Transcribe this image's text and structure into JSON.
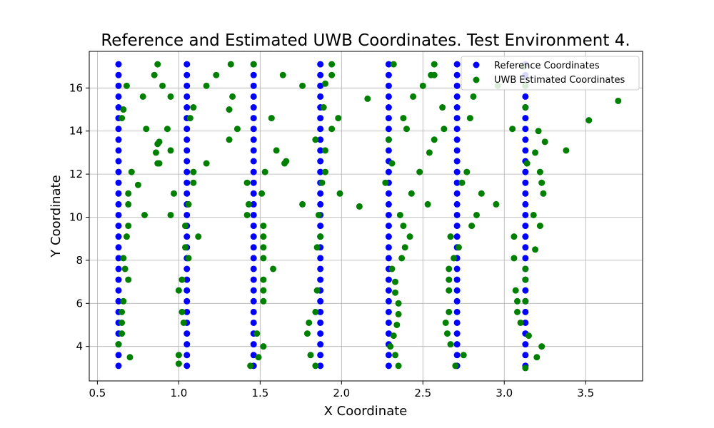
{
  "chart_data": {
    "type": "scatter",
    "title": "Reference and Estimated UWB Coordinates. Test Environment 4.",
    "xlabel": "X Coordinate",
    "ylabel": "Y Coordinate",
    "xlim": [
      0.45,
      3.85
    ],
    "ylim": [
      2.4,
      17.7
    ],
    "xticks": [
      0.5,
      1.0,
      1.5,
      2.0,
      2.5,
      3.0,
      3.5
    ],
    "xtick_labels": [
      "0.5",
      "1.0",
      "1.5",
      "2.0",
      "2.5",
      "3.0",
      "3.5"
    ],
    "yticks": [
      4,
      6,
      8,
      10,
      12,
      14,
      16
    ],
    "ytick_labels": [
      "4",
      "6",
      "8",
      "10",
      "12",
      "14",
      "16"
    ],
    "grid": true,
    "legend_position": "top-right",
    "series": [
      {
        "name": "Reference Coordinates",
        "color": "#0000ff",
        "columns_x": [
          0.63,
          1.05,
          1.46,
          1.87,
          2.29,
          2.71,
          3.13
        ],
        "y_start": 3.1,
        "y_end": 17.1,
        "y_step": 0.5
      },
      {
        "name": "UWB Estimated Coordinates",
        "color": "#008000",
        "points": [
          [
            0.68,
            16.1
          ],
          [
            0.78,
            15.6
          ],
          [
            0.66,
            15.0
          ],
          [
            0.65,
            14.6
          ],
          [
            0.8,
            14.1
          ],
          [
            0.88,
            13.5
          ],
          [
            0.86,
            13.0
          ],
          [
            0.88,
            12.5
          ],
          [
            0.71,
            12.1
          ],
          [
            0.75,
            11.5
          ],
          [
            0.69,
            11.1
          ],
          [
            0.69,
            10.6
          ],
          [
            0.79,
            10.1
          ],
          [
            0.69,
            9.6
          ],
          [
            0.68,
            9.1
          ],
          [
            0.66,
            8.1
          ],
          [
            0.67,
            7.6
          ],
          [
            0.69,
            7.1
          ],
          [
            0.66,
            6.1
          ],
          [
            0.65,
            5.6
          ],
          [
            0.65,
            5.1
          ],
          [
            0.65,
            4.6
          ],
          [
            0.63,
            4.1
          ],
          [
            0.7,
            3.5
          ],
          [
            0.87,
            17.1
          ],
          [
            0.85,
            16.6
          ],
          [
            0.9,
            16.1
          ],
          [
            0.95,
            15.6
          ],
          [
            0.93,
            14.1
          ],
          [
            0.87,
            13.4
          ],
          [
            0.95,
            13.1
          ],
          [
            0.87,
            12.5
          ],
          [
            0.97,
            11.1
          ],
          [
            0.95,
            10.1
          ],
          [
            1.0,
            3.6
          ],
          [
            1.0,
            3.2
          ],
          [
            1.0,
            6.6
          ],
          [
            1.02,
            7.1
          ],
          [
            1.02,
            5.6
          ],
          [
            1.03,
            5.1
          ],
          [
            1.04,
            8.6
          ],
          [
            1.04,
            9.6
          ],
          [
            1.06,
            8.1
          ],
          [
            1.06,
            10.6
          ],
          [
            1.07,
            14.6
          ],
          [
            1.09,
            15.1
          ],
          [
            1.09,
            12.1
          ],
          [
            1.09,
            11.6
          ],
          [
            1.12,
            9.1
          ],
          [
            1.17,
            16.1
          ],
          [
            1.17,
            12.5
          ],
          [
            1.23,
            16.6
          ],
          [
            1.32,
            17.1
          ],
          [
            1.33,
            15.6
          ],
          [
            1.31,
            15.0
          ],
          [
            1.36,
            14.1
          ],
          [
            1.31,
            13.6
          ],
          [
            1.42,
            11.6
          ],
          [
            1.43,
            10.6
          ],
          [
            1.42,
            10.1
          ],
          [
            1.44,
            3.1
          ],
          [
            1.46,
            17.1
          ],
          [
            1.48,
            4.6
          ],
          [
            1.49,
            3.5
          ],
          [
            1.51,
            11.1
          ],
          [
            1.52,
            9.6
          ],
          [
            1.52,
            9.1
          ],
          [
            1.52,
            8.6
          ],
          [
            1.52,
            8.1
          ],
          [
            1.53,
            12.1
          ],
          [
            1.52,
            7.1
          ],
          [
            1.52,
            6.6
          ],
          [
            1.52,
            6.1
          ],
          [
            1.52,
            4.0
          ],
          [
            1.57,
            14.6
          ],
          [
            1.58,
            7.6
          ],
          [
            1.6,
            13.1
          ],
          [
            1.64,
            16.6
          ],
          [
            1.65,
            12.5
          ],
          [
            1.66,
            12.6
          ],
          [
            1.76,
            16.1
          ],
          [
            1.76,
            10.6
          ],
          [
            1.79,
            4.6
          ],
          [
            1.8,
            5.1
          ],
          [
            1.81,
            3.6
          ],
          [
            1.84,
            3.1
          ],
          [
            1.84,
            5.6
          ],
          [
            1.85,
            6.6
          ],
          [
            1.84,
            13.6
          ],
          [
            1.86,
            10.1
          ],
          [
            1.87,
            9.1
          ],
          [
            1.85,
            8.6
          ],
          [
            1.88,
            11.6
          ],
          [
            1.89,
            15.1
          ],
          [
            1.9,
            13.1
          ],
          [
            1.9,
            12.1
          ],
          [
            1.9,
            16.2
          ],
          [
            1.94,
            17.1
          ],
          [
            1.94,
            16.6
          ],
          [
            1.94,
            14.1
          ],
          [
            1.98,
            14.6
          ],
          [
            1.99,
            11.1
          ],
          [
            2.11,
            10.5
          ],
          [
            2.16,
            15.5
          ],
          [
            2.27,
            11.6
          ],
          [
            2.29,
            13.6
          ],
          [
            2.3,
            4.0
          ],
          [
            2.31,
            7.6
          ],
          [
            2.32,
            4.5
          ],
          [
            2.31,
            12.5
          ],
          [
            2.32,
            17.1
          ],
          [
            2.33,
            6.5
          ],
          [
            2.33,
            3.6
          ],
          [
            2.33,
            7.0
          ],
          [
            2.35,
            5.5
          ],
          [
            2.34,
            5.0
          ],
          [
            2.35,
            6.0
          ],
          [
            2.35,
            3.1
          ],
          [
            2.36,
            10.1
          ],
          [
            2.37,
            8.1
          ],
          [
            2.38,
            14.6
          ],
          [
            2.38,
            9.6
          ],
          [
            2.39,
            8.6
          ],
          [
            2.4,
            14.1
          ],
          [
            2.42,
            9.1
          ],
          [
            2.43,
            11.1
          ],
          [
            2.44,
            15.6
          ],
          [
            2.48,
            12.1
          ],
          [
            2.5,
            16.1
          ],
          [
            2.53,
            10.6
          ],
          [
            2.54,
            13.0
          ],
          [
            2.55,
            16.6
          ],
          [
            2.57,
            16.6
          ],
          [
            2.57,
            17.1
          ],
          [
            2.57,
            13.6
          ],
          [
            2.62,
            15.1
          ],
          [
            2.63,
            14.1
          ],
          [
            2.64,
            5.1
          ],
          [
            2.65,
            4.6
          ],
          [
            2.66,
            7.6
          ],
          [
            2.66,
            7.1
          ],
          [
            2.66,
            6.6
          ],
          [
            2.66,
            5.6
          ],
          [
            2.67,
            4.1
          ],
          [
            2.67,
            9.1
          ],
          [
            2.69,
            8.1
          ],
          [
            2.7,
            3.1
          ],
          [
            2.72,
            8.6
          ],
          [
            2.74,
            11.6
          ],
          [
            2.75,
            3.6
          ],
          [
            2.77,
            12.1
          ],
          [
            2.79,
            14.6
          ],
          [
            2.8,
            9.6
          ],
          [
            2.81,
            15.6
          ],
          [
            2.83,
            10.1
          ],
          [
            2.86,
            11.1
          ],
          [
            2.95,
            10.6
          ],
          [
            2.96,
            16.1
          ],
          [
            3.05,
            14.1
          ],
          [
            3.06,
            9.1
          ],
          [
            3.06,
            8.1
          ],
          [
            3.07,
            6.6
          ],
          [
            3.08,
            6.1
          ],
          [
            3.08,
            5.6
          ],
          [
            3.1,
            5.1
          ],
          [
            3.13,
            7.6
          ],
          [
            3.13,
            7.1
          ],
          [
            3.13,
            6.1
          ],
          [
            3.12,
            17.0
          ],
          [
            3.13,
            16.1
          ],
          [
            3.13,
            15.1
          ],
          [
            3.14,
            12.5
          ],
          [
            3.13,
            3.0
          ],
          [
            3.15,
            4.5
          ],
          [
            3.18,
            10.1
          ],
          [
            3.19,
            13.0
          ],
          [
            3.19,
            8.5
          ],
          [
            3.2,
            3.5
          ],
          [
            3.21,
            14.0
          ],
          [
            3.22,
            12.1
          ],
          [
            3.22,
            9.6
          ],
          [
            3.23,
            11.6
          ],
          [
            3.24,
            11.1
          ],
          [
            3.23,
            4.0
          ],
          [
            3.25,
            13.5
          ],
          [
            3.38,
            13.1
          ],
          [
            3.52,
            14.5
          ],
          [
            3.7,
            15.4
          ]
        ]
      }
    ]
  }
}
